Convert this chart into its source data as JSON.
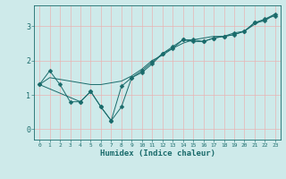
{
  "xlabel": "Humidex (Indice chaleur)",
  "bg_color": "#ceeaea",
  "line_color": "#1a6b6b",
  "grid_color": "#e8b4b4",
  "xlim": [
    -0.5,
    23.5
  ],
  "ylim": [
    -0.3,
    3.6
  ],
  "yticks": [
    0,
    1,
    2,
    3
  ],
  "xticks": [
    0,
    1,
    2,
    3,
    4,
    5,
    6,
    7,
    8,
    9,
    10,
    11,
    12,
    13,
    14,
    15,
    16,
    17,
    18,
    19,
    20,
    21,
    22,
    23
  ],
  "line1_x": [
    0,
    1,
    2,
    3,
    4,
    5,
    6,
    7,
    8,
    9,
    10,
    11,
    12,
    13,
    14,
    15,
    16,
    17,
    18,
    19,
    20,
    21,
    22,
    23
  ],
  "line1_y": [
    1.3,
    1.7,
    1.3,
    0.8,
    0.8,
    1.1,
    0.65,
    0.25,
    0.65,
    1.5,
    1.65,
    1.9,
    2.2,
    2.35,
    2.6,
    2.55,
    2.55,
    2.65,
    2.7,
    2.8,
    2.85,
    3.1,
    3.2,
    3.3
  ],
  "line2_x": [
    0,
    1,
    2,
    3,
    4,
    5,
    6,
    7,
    8,
    9,
    10,
    11,
    12,
    13,
    14,
    15,
    16,
    17,
    18,
    19,
    20,
    21,
    22,
    23
  ],
  "line2_y": [
    1.3,
    1.5,
    1.45,
    1.4,
    1.35,
    1.3,
    1.3,
    1.35,
    1.4,
    1.55,
    1.75,
    2.0,
    2.15,
    2.35,
    2.5,
    2.6,
    2.65,
    2.7,
    2.7,
    2.75,
    2.85,
    3.05,
    3.2,
    3.35
  ],
  "line3_x": [
    0,
    4,
    5,
    6,
    7,
    8,
    9,
    10,
    11,
    12,
    13,
    14,
    15,
    16,
    17,
    18,
    19,
    20,
    21,
    22,
    23
  ],
  "line3_y": [
    1.3,
    0.8,
    1.1,
    0.65,
    0.25,
    1.25,
    1.5,
    1.7,
    1.95,
    2.2,
    2.4,
    2.6,
    2.6,
    2.55,
    2.65,
    2.7,
    2.75,
    2.85,
    3.1,
    3.15,
    3.35
  ]
}
